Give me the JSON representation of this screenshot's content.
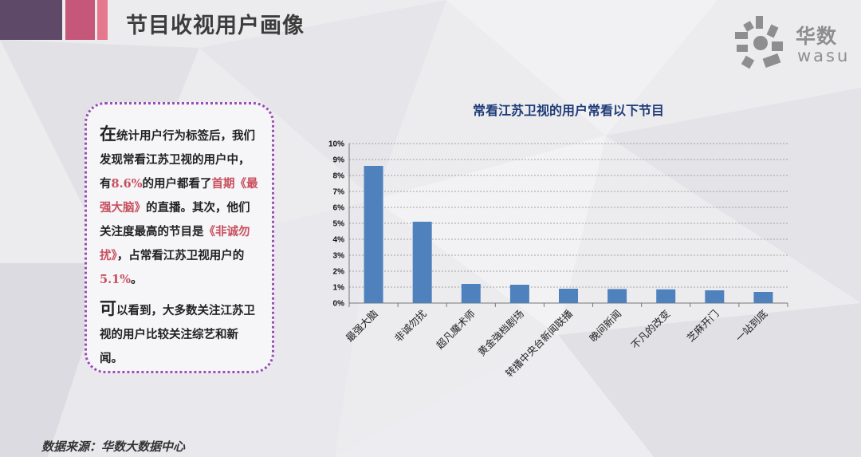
{
  "header": {
    "title": "节目收视用户画像"
  },
  "logo": {
    "name_zh": "华数",
    "name_en": "wasu"
  },
  "callout": {
    "p1_lead": "在",
    "p1_a": "统计用户行为标签后，我们发现常看江苏卫视的用户中，有",
    "p1_pct1": "8.6%",
    "p1_b": "的用户都看了",
    "p1_show1": "首期《最强大脑》",
    "p1_c": "的直播。其次，他们关注度最高的节目是",
    "p1_show2": "《非诚勿扰》",
    "p1_d": "，占常看江苏卫视用户的",
    "p1_pct2": "5.1%",
    "p1_e": "。",
    "p2_lead": "可",
    "p2_a": "以看到，大多数关注江苏卫视的用户比较关注综艺和新闻。"
  },
  "footer": {
    "source": "数据来源：华数大数据中心"
  },
  "chart_data": {
    "type": "bar",
    "title": "常看江苏卫视的用户常看以下节目",
    "categories": [
      "最强大脑",
      "非诚勿扰",
      "超凡魔术师",
      "黄金強档剧场",
      "转播中央台新闻联播",
      "晚间新闻",
      "不凡的改变",
      "芝麻开门",
      "一站到底"
    ],
    "values": [
      8.6,
      5.1,
      1.2,
      1.15,
      0.9,
      0.88,
      0.86,
      0.8,
      0.7
    ],
    "ylim": [
      0,
      10
    ],
    "yticks": [
      "0%",
      "1%",
      "2%",
      "3%",
      "4%",
      "5%",
      "6%",
      "7%",
      "8%",
      "9%",
      "10%"
    ],
    "grid": true,
    "bar_color": "#4f81bd"
  }
}
